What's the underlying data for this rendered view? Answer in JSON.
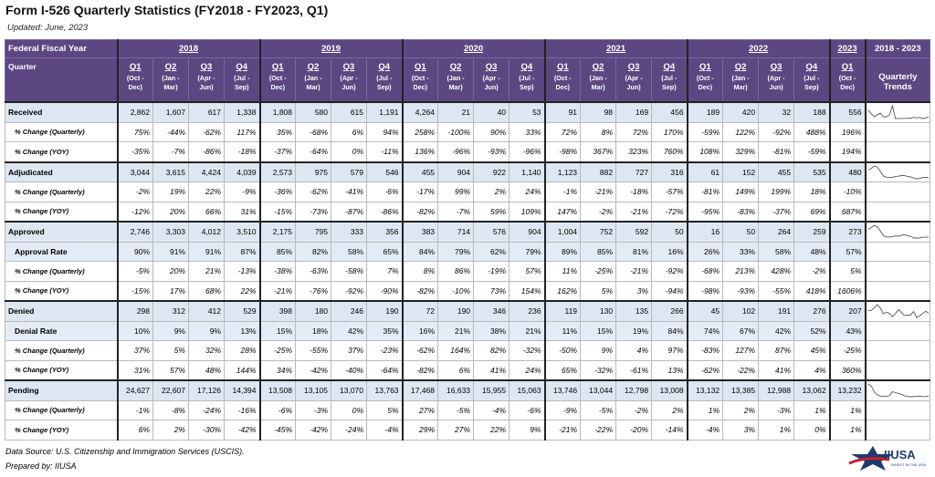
{
  "header": {
    "title": "Form I-526 Quarterly Statistics (FY2018 - FY2023, Q1)",
    "updated": "Updated: June, 2023"
  },
  "table": {
    "col_label_top": "Federal Fiscal Year",
    "col_label_bottom": "Quarter",
    "trends_title": "2018 - 2023",
    "trends_label": "Quarterly Trends",
    "years": [
      {
        "year": "2018",
        "quarters": [
          {
            "q": "Q1",
            "months": "(Oct - Dec)"
          },
          {
            "q": "Q2",
            "months": "(Jan - Mar)"
          },
          {
            "q": "Q3",
            "months": "(Apr - Jun)"
          },
          {
            "q": "Q4",
            "months": "(Jul - Sep)"
          }
        ]
      },
      {
        "year": "2019",
        "quarters": [
          {
            "q": "Q1",
            "months": "(Oct - Dec)"
          },
          {
            "q": "Q2",
            "months": "(Jan - Mar)"
          },
          {
            "q": "Q3",
            "months": "(Apr - Jun)"
          },
          {
            "q": "Q4",
            "months": "(Jul - Sep)"
          }
        ]
      },
      {
        "year": "2020",
        "quarters": [
          {
            "q": "Q1",
            "months": "(Oct - Dec)"
          },
          {
            "q": "Q2",
            "months": "(Jan - Mar)"
          },
          {
            "q": "Q3",
            "months": "(Apr - Jun)"
          },
          {
            "q": "Q4",
            "months": "(Jul - Sep)"
          }
        ]
      },
      {
        "year": "2021",
        "quarters": [
          {
            "q": "Q1",
            "months": "(Oct - Dec)"
          },
          {
            "q": "Q2",
            "months": "(Jan - Mar)"
          },
          {
            "q": "Q3",
            "months": "(Apr - Jun)"
          },
          {
            "q": "Q4",
            "months": "(Jul - Sep)"
          }
        ]
      },
      {
        "year": "2022",
        "quarters": [
          {
            "q": "Q1",
            "months": "(Oct - Dec)"
          },
          {
            "q": "Q2",
            "months": "(Jan - Mar)"
          },
          {
            "q": "Q3",
            "months": "(Apr - Jun)"
          },
          {
            "q": "Q4",
            "months": "(Jul - Sep)"
          }
        ]
      },
      {
        "year": "2023",
        "quarters": [
          {
            "q": "Q1",
            "months": "(Oct - Dec)"
          }
        ]
      }
    ],
    "groups": [
      {
        "label": "Received",
        "values": [
          "2,862",
          "1,607",
          "617",
          "1,338",
          "1,808",
          "580",
          "615",
          "1,191",
          "4,264",
          "21",
          "40",
          "53",
          "91",
          "98",
          "169",
          "456",
          "189",
          "420",
          "32",
          "188",
          "556"
        ],
        "changes": [
          {
            "label": "% Change (Quarterly)",
            "values": [
              "75%",
              "-44%",
              "-62%",
              "117%",
              "35%",
              "-68%",
              "6%",
              "94%",
              "258%",
              "-100%",
              "90%",
              "33%",
              "72%",
              "8%",
              "72%",
              "170%",
              "-59%",
              "122%",
              "-92%",
              "488%",
              "196%"
            ]
          },
          {
            "label": "% Change (YOY)",
            "values": [
              "-35%",
              "-7%",
              "-86%",
              "-18%",
              "-37%",
              "-64%",
              "0%",
              "-11%",
              "136%",
              "-96%",
              "-93%",
              "-96%",
              "-98%",
              "367%",
              "323%",
              "760%",
              "108%",
              "329%",
              "-81%",
              "-59%",
              "194%"
            ]
          }
        ]
      },
      {
        "label": "Adjudicated",
        "values": [
          "3,044",
          "3,615",
          "4,424",
          "4,039",
          "2,573",
          "975",
          "579",
          "546",
          "455",
          "904",
          "922",
          "1,140",
          "1,123",
          "882",
          "727",
          "316",
          "61",
          "152",
          "455",
          "535",
          "480"
        ],
        "changes": [
          {
            "label": "% Change (Quarterly)",
            "values": [
              "-2%",
              "19%",
              "22%",
              "-9%",
              "-36%",
              "-62%",
              "-41%",
              "-6%",
              "-17%",
              "99%",
              "2%",
              "24%",
              "-1%",
              "-21%",
              "-18%",
              "-57%",
              "-81%",
              "149%",
              "199%",
              "18%",
              "-10%"
            ]
          },
          {
            "label": "% Change (YOY)",
            "values": [
              "-12%",
              "20%",
              "66%",
              "31%",
              "-15%",
              "-73%",
              "-87%",
              "-86%",
              "-82%",
              "-7%",
              "59%",
              "109%",
              "147%",
              "-2%",
              "-21%",
              "-72%",
              "-95%",
              "-83%",
              "-37%",
              "69%",
              "687%"
            ]
          }
        ]
      },
      {
        "label": "Approved",
        "values": [
          "2,746",
          "3,303",
          "4,012",
          "3,510",
          "2,175",
          "795",
          "333",
          "356",
          "383",
          "714",
          "576",
          "904",
          "1,004",
          "752",
          "592",
          "50",
          "16",
          "50",
          "264",
          "259",
          "273"
        ],
        "rate": {
          "label": "Approval Rate",
          "values": [
            "90%",
            "91%",
            "91%",
            "87%",
            "85%",
            "82%",
            "58%",
            "65%",
            "84%",
            "79%",
            "62%",
            "79%",
            "89%",
            "85%",
            "81%",
            "16%",
            "26%",
            "33%",
            "58%",
            "48%",
            "57%"
          ]
        },
        "changes": [
          {
            "label": "% Change (Quarterly)",
            "values": [
              "-5%",
              "20%",
              "21%",
              "-13%",
              "-38%",
              "-63%",
              "-58%",
              "7%",
              "8%",
              "86%",
              "-19%",
              "57%",
              "11%",
              "-25%",
              "-21%",
              "-92%",
              "-68%",
              "213%",
              "428%",
              "-2%",
              "5%"
            ]
          },
          {
            "label": "% Change (YOY)",
            "values": [
              "-15%",
              "17%",
              "68%",
              "22%",
              "-21%",
              "-76%",
              "-92%",
              "-90%",
              "-82%",
              "-10%",
              "73%",
              "154%",
              "162%",
              "5%",
              "3%",
              "-94%",
              "-98%",
              "-93%",
              "-55%",
              "418%",
              "1606%"
            ]
          }
        ]
      },
      {
        "label": "Denied",
        "values": [
          "298",
          "312",
          "412",
          "529",
          "398",
          "180",
          "246",
          "190",
          "72",
          "190",
          "346",
          "236",
          "119",
          "130",
          "135",
          "266",
          "45",
          "102",
          "191",
          "276",
          "207"
        ],
        "rate": {
          "label": "Denial Rate",
          "values": [
            "10%",
            "9%",
            "9%",
            "13%",
            "15%",
            "18%",
            "42%",
            "35%",
            "16%",
            "21%",
            "38%",
            "21%",
            "11%",
            "15%",
            "19%",
            "84%",
            "74%",
            "67%",
            "42%",
            "52%",
            "43%"
          ]
        },
        "changes": [
          {
            "label": "% Change (Quarterly)",
            "values": [
              "37%",
              "5%",
              "32%",
              "28%",
              "-25%",
              "-55%",
              "37%",
              "-23%",
              "-62%",
              "164%",
              "82%",
              "-32%",
              "-50%",
              "9%",
              "4%",
              "97%",
              "-83%",
              "127%",
              "87%",
              "45%",
              "-25%"
            ]
          },
          {
            "label": "% Change (YOY)",
            "values": [
              "31%",
              "57%",
              "48%",
              "144%",
              "34%",
              "-42%",
              "-40%",
              "-64%",
              "-82%",
              "6%",
              "41%",
              "24%",
              "65%",
              "-32%",
              "-61%",
              "13%",
              "-62%",
              "-22%",
              "41%",
              "4%",
              "360%"
            ]
          }
        ]
      },
      {
        "label": "Pending",
        "values": [
          "24,627",
          "22,607",
          "17,126",
          "14,394",
          "13,508",
          "13,105",
          "13,070",
          "13,763",
          "17,468",
          "16,633",
          "15,955",
          "15,063",
          "13,746",
          "13,044",
          "12,798",
          "13,008",
          "13,132",
          "13,385",
          "12,988",
          "13,062",
          "13,232"
        ],
        "changes": [
          {
            "label": "% Change (Quarterly)",
            "values": [
              "-1%",
              "-8%",
              "-24%",
              "-16%",
              "-6%",
              "-3%",
              "0%",
              "5%",
              "27%",
              "-5%",
              "-4%",
              "-6%",
              "-9%",
              "-5%",
              "-2%",
              "2%",
              "1%",
              "2%",
              "-3%",
              "1%",
              "1%"
            ]
          },
          {
            "label": "% Change (YOY)",
            "values": [
              "6%",
              "2%",
              "-30%",
              "-42%",
              "-45%",
              "-42%",
              "-24%",
              "-4%",
              "29%",
              "27%",
              "22%",
              "9%",
              "-21%",
              "-22%",
              "-20%",
              "-14%",
              "-4%",
              "3%",
              "1%",
              "0%",
              "1%"
            ]
          }
        ]
      }
    ]
  },
  "footer": {
    "source": "Data Source: U.S. Citizenship and Immigration Services (USCIS).",
    "prepared": "Prepared by: IIUSA",
    "logo": "IIUSA",
    "logo_tagline": "INVEST IN THE USA"
  }
}
